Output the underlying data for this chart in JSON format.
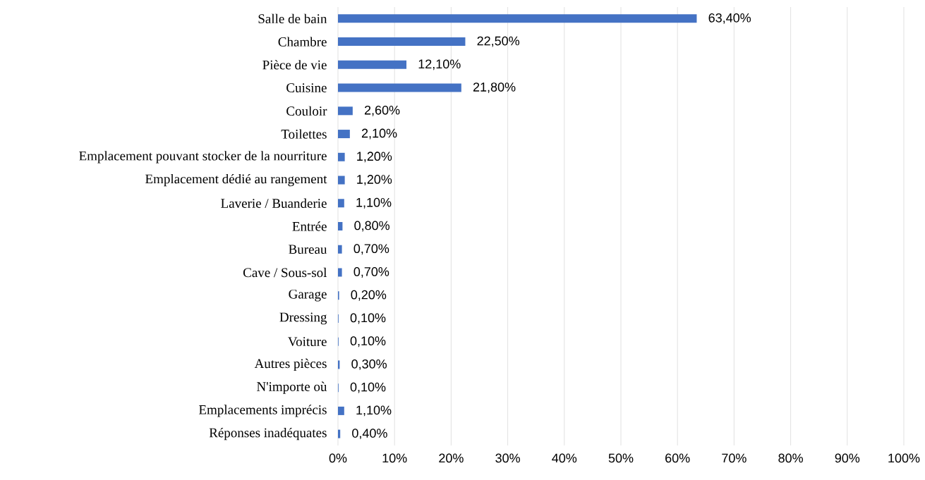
{
  "chart_data": {
    "type": "bar",
    "orientation": "horizontal",
    "grid": "x",
    "categories": [
      "Salle de bain",
      "Chambre",
      "Pièce de vie",
      "Cuisine",
      "Couloir",
      "Toilettes",
      "Emplacement pouvant stocker de la nourriture",
      "Emplacement dédié au rangement",
      "Laverie / Buanderie",
      "Entrée",
      "Bureau",
      "Cave / Sous-sol",
      "Garage",
      "Dressing",
      "Voiture",
      "Autres pièces",
      "N'importe où",
      "Emplacements imprécis",
      "Réponses inadéquates"
    ],
    "values": [
      63.4,
      22.5,
      12.1,
      21.8,
      2.6,
      2.1,
      1.2,
      1.2,
      1.1,
      0.8,
      0.7,
      0.7,
      0.2,
      0.1,
      0.1,
      0.3,
      0.1,
      1.1,
      0.4
    ],
    "value_labels": [
      "63,40%",
      "22,50%",
      "12,10%",
      "21,80%",
      "2,60%",
      "2,10%",
      "1,20%",
      "1,20%",
      "1,10%",
      "0,80%",
      "0,70%",
      "0,70%",
      "0,20%",
      "0,10%",
      "0,10%",
      "0,30%",
      "0,10%",
      "1,10%",
      "0,40%"
    ],
    "color": "#4472c4",
    "xlim": [
      0,
      100
    ],
    "xticks": [
      {
        "value": 0,
        "label": "0%"
      },
      {
        "value": 10,
        "label": "10%"
      },
      {
        "value": 20,
        "label": "20%"
      },
      {
        "value": 30,
        "label": "30%"
      },
      {
        "value": 40,
        "label": "40%"
      },
      {
        "value": 50,
        "label": "50%"
      },
      {
        "value": 60,
        "label": "60%"
      },
      {
        "value": 70,
        "label": "70%"
      },
      {
        "value": 80,
        "label": "80%"
      },
      {
        "value": 90,
        "label": "90%"
      },
      {
        "value": 100,
        "label": "100%"
      }
    ]
  }
}
